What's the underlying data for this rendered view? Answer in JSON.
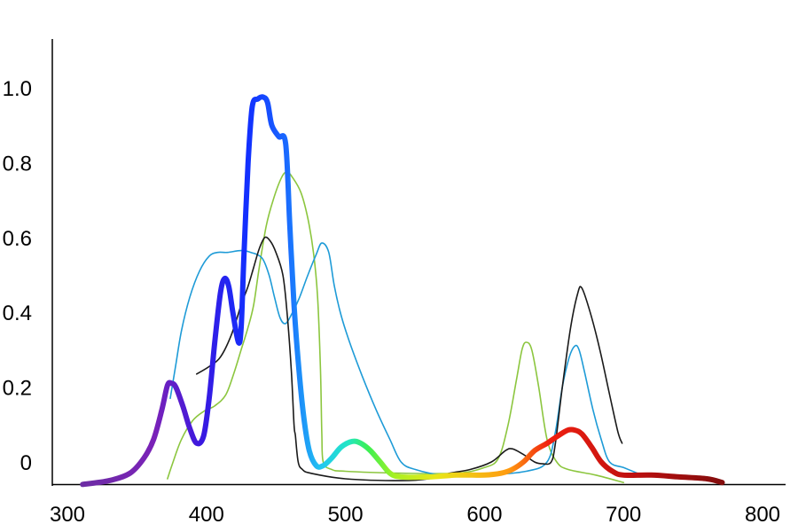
{
  "chart_data": {
    "type": "line",
    "title": "",
    "xlabel": "",
    "ylabel": "",
    "xlim": [
      300,
      800
    ],
    "ylim": [
      -0.06,
      1.1
    ],
    "grid": false,
    "legend": "none",
    "x_ticks": [
      {
        "value": 300,
        "label": "300"
      },
      {
        "value": 400,
        "label": "400"
      },
      {
        "value": 500,
        "label": "500"
      },
      {
        "value": 600,
        "label": "600"
      },
      {
        "value": 700,
        "label": "700"
      },
      {
        "value": 800,
        "label": "800"
      }
    ],
    "y_ticks": [
      {
        "value": 0,
        "label": "0"
      },
      {
        "value": 0.2,
        "label": "0.2"
      },
      {
        "value": 0.4,
        "label": "0.4"
      },
      {
        "value": 0.6,
        "label": "0.6"
      },
      {
        "value": 0.8,
        "label": "0.8"
      },
      {
        "value": 1.0,
        "label": "1.0"
      }
    ],
    "series": [
      {
        "style": "thick-rainbow",
        "points": [
          [
            311,
            -0.06
          ],
          [
            330,
            -0.05
          ],
          [
            345,
            -0.03
          ],
          [
            355,
            0.01
          ],
          [
            362,
            0.06
          ],
          [
            368,
            0.14
          ],
          [
            372,
            0.205
          ],
          [
            375,
            0.21
          ],
          [
            378,
            0.2
          ],
          [
            383,
            0.15
          ],
          [
            388,
            0.09
          ],
          [
            393,
            0.05
          ],
          [
            398,
            0.07
          ],
          [
            402,
            0.17
          ],
          [
            406,
            0.32
          ],
          [
            410,
            0.45
          ],
          [
            413,
            0.49
          ],
          [
            416,
            0.47
          ],
          [
            419,
            0.4
          ],
          [
            423,
            0.32
          ],
          [
            425,
            0.36
          ],
          [
            427,
            0.55
          ],
          [
            430,
            0.8
          ],
          [
            433,
            0.95
          ],
          [
            437,
            0.97
          ],
          [
            441,
            0.975
          ],
          [
            444,
            0.96
          ],
          [
            447,
            0.9
          ],
          [
            452,
            0.87
          ],
          [
            457,
            0.85
          ],
          [
            460,
            0.63
          ],
          [
            463,
            0.42
          ],
          [
            466,
            0.27
          ],
          [
            470,
            0.12
          ],
          [
            474,
            0.03
          ],
          [
            479,
            -0.01
          ],
          [
            484,
            -0.01
          ],
          [
            490,
            0.01
          ],
          [
            497,
            0.04
          ],
          [
            505,
            0.055
          ],
          [
            511,
            0.05
          ],
          [
            518,
            0.03
          ],
          [
            525,
            0.0
          ],
          [
            532,
            -0.03
          ],
          [
            540,
            -0.04
          ],
          [
            560,
            -0.04
          ],
          [
            580,
            -0.035
          ],
          [
            600,
            -0.035
          ],
          [
            612,
            -0.03
          ],
          [
            620,
            -0.02
          ],
          [
            628,
            0.0
          ],
          [
            636,
            0.03
          ],
          [
            645,
            0.05
          ],
          [
            653,
            0.07
          ],
          [
            660,
            0.085
          ],
          [
            665,
            0.085
          ],
          [
            670,
            0.075
          ],
          [
            677,
            0.04
          ],
          [
            684,
            0.0
          ],
          [
            692,
            -0.025
          ],
          [
            700,
            -0.035
          ],
          [
            720,
            -0.035
          ],
          [
            740,
            -0.04
          ],
          [
            760,
            -0.045
          ],
          [
            771,
            -0.055
          ]
        ]
      },
      {
        "style": "thin",
        "color": "#1a1a1a",
        "points": [
          [
            393,
            0.235
          ],
          [
            402,
            0.255
          ],
          [
            410,
            0.28
          ],
          [
            418,
            0.34
          ],
          [
            425,
            0.42
          ],
          [
            430,
            0.47
          ],
          [
            434,
            0.52
          ],
          [
            438,
            0.57
          ],
          [
            442,
            0.6
          ],
          [
            446,
            0.59
          ],
          [
            450,
            0.56
          ],
          [
            455,
            0.5
          ],
          [
            458,
            0.4
          ],
          [
            461,
            0.25
          ],
          [
            463,
            0.1
          ],
          [
            464,
            0.07
          ],
          [
            466,
            0.0
          ],
          [
            469,
            -0.02
          ],
          [
            475,
            -0.03
          ],
          [
            500,
            -0.045
          ],
          [
            540,
            -0.05
          ],
          [
            560,
            -0.045
          ],
          [
            575,
            -0.03
          ],
          [
            590,
            -0.02
          ],
          [
            605,
            -0.0
          ],
          [
            615,
            0.03
          ],
          [
            620,
            0.035
          ],
          [
            628,
            0.02
          ],
          [
            636,
            0.0
          ],
          [
            642,
            -0.005
          ],
          [
            648,
            0.0
          ],
          [
            651,
            0.05
          ],
          [
            656,
            0.2
          ],
          [
            662,
            0.36
          ],
          [
            667,
            0.45
          ],
          [
            670,
            0.465
          ],
          [
            676,
            0.4
          ],
          [
            683,
            0.3
          ],
          [
            690,
            0.18
          ],
          [
            696,
            0.08
          ],
          [
            699,
            0.05
          ]
        ]
      },
      {
        "style": "thin",
        "color": "#1e9bd7",
        "points": [
          [
            374,
            0.17
          ],
          [
            378,
            0.26
          ],
          [
            382,
            0.35
          ],
          [
            388,
            0.44
          ],
          [
            395,
            0.51
          ],
          [
            402,
            0.55
          ],
          [
            408,
            0.56
          ],
          [
            415,
            0.56
          ],
          [
            425,
            0.565
          ],
          [
            432,
            0.56
          ],
          [
            440,
            0.545
          ],
          [
            445,
            0.5
          ],
          [
            449,
            0.44
          ],
          [
            453,
            0.385
          ],
          [
            457,
            0.37
          ],
          [
            462,
            0.4
          ],
          [
            467,
            0.44
          ],
          [
            473,
            0.5
          ],
          [
            479,
            0.555
          ],
          [
            483,
            0.585
          ],
          [
            488,
            0.56
          ],
          [
            492,
            0.47
          ],
          [
            497,
            0.39
          ],
          [
            503,
            0.32
          ],
          [
            512,
            0.23
          ],
          [
            522,
            0.14
          ],
          [
            532,
            0.06
          ],
          [
            540,
            0.0
          ],
          [
            550,
            -0.02
          ],
          [
            570,
            -0.035
          ],
          [
            600,
            -0.035
          ],
          [
            630,
            -0.025
          ],
          [
            645,
            0.0
          ],
          [
            651,
            0.08
          ],
          [
            656,
            0.2
          ],
          [
            661,
            0.28
          ],
          [
            665,
            0.31
          ],
          [
            668,
            0.3
          ],
          [
            672,
            0.24
          ],
          [
            678,
            0.14
          ],
          [
            684,
            0.06
          ],
          [
            690,
            0.0
          ],
          [
            700,
            -0.015
          ],
          [
            710,
            -0.03
          ]
        ]
      },
      {
        "style": "thin",
        "color": "#8cc63f",
        "points": [
          [
            372,
            -0.045
          ],
          [
            376,
            0.0
          ],
          [
            382,
            0.06
          ],
          [
            390,
            0.11
          ],
          [
            398,
            0.135
          ],
          [
            406,
            0.15
          ],
          [
            414,
            0.18
          ],
          [
            420,
            0.24
          ],
          [
            425,
            0.3
          ],
          [
            430,
            0.36
          ],
          [
            434,
            0.42
          ],
          [
            438,
            0.52
          ],
          [
            443,
            0.63
          ],
          [
            448,
            0.7
          ],
          [
            454,
            0.76
          ],
          [
            458,
            0.775
          ],
          [
            462,
            0.76
          ],
          [
            468,
            0.72
          ],
          [
            473,
            0.65
          ],
          [
            477,
            0.56
          ],
          [
            480,
            0.44
          ],
          [
            482,
            0.25
          ],
          [
            483,
            0.08
          ],
          [
            484,
            0.0
          ],
          [
            490,
            -0.02
          ],
          [
            500,
            -0.025
          ],
          [
            540,
            -0.03
          ],
          [
            580,
            -0.03
          ],
          [
            600,
            -0.015
          ],
          [
            610,
            0.01
          ],
          [
            617,
            0.1
          ],
          [
            623,
            0.22
          ],
          [
            627,
            0.3
          ],
          [
            630,
            0.32
          ],
          [
            634,
            0.3
          ],
          [
            639,
            0.2
          ],
          [
            645,
            0.06
          ],
          [
            652,
            0.0
          ],
          [
            660,
            -0.02
          ],
          [
            680,
            -0.035
          ],
          [
            700,
            -0.055
          ]
        ]
      }
    ]
  }
}
